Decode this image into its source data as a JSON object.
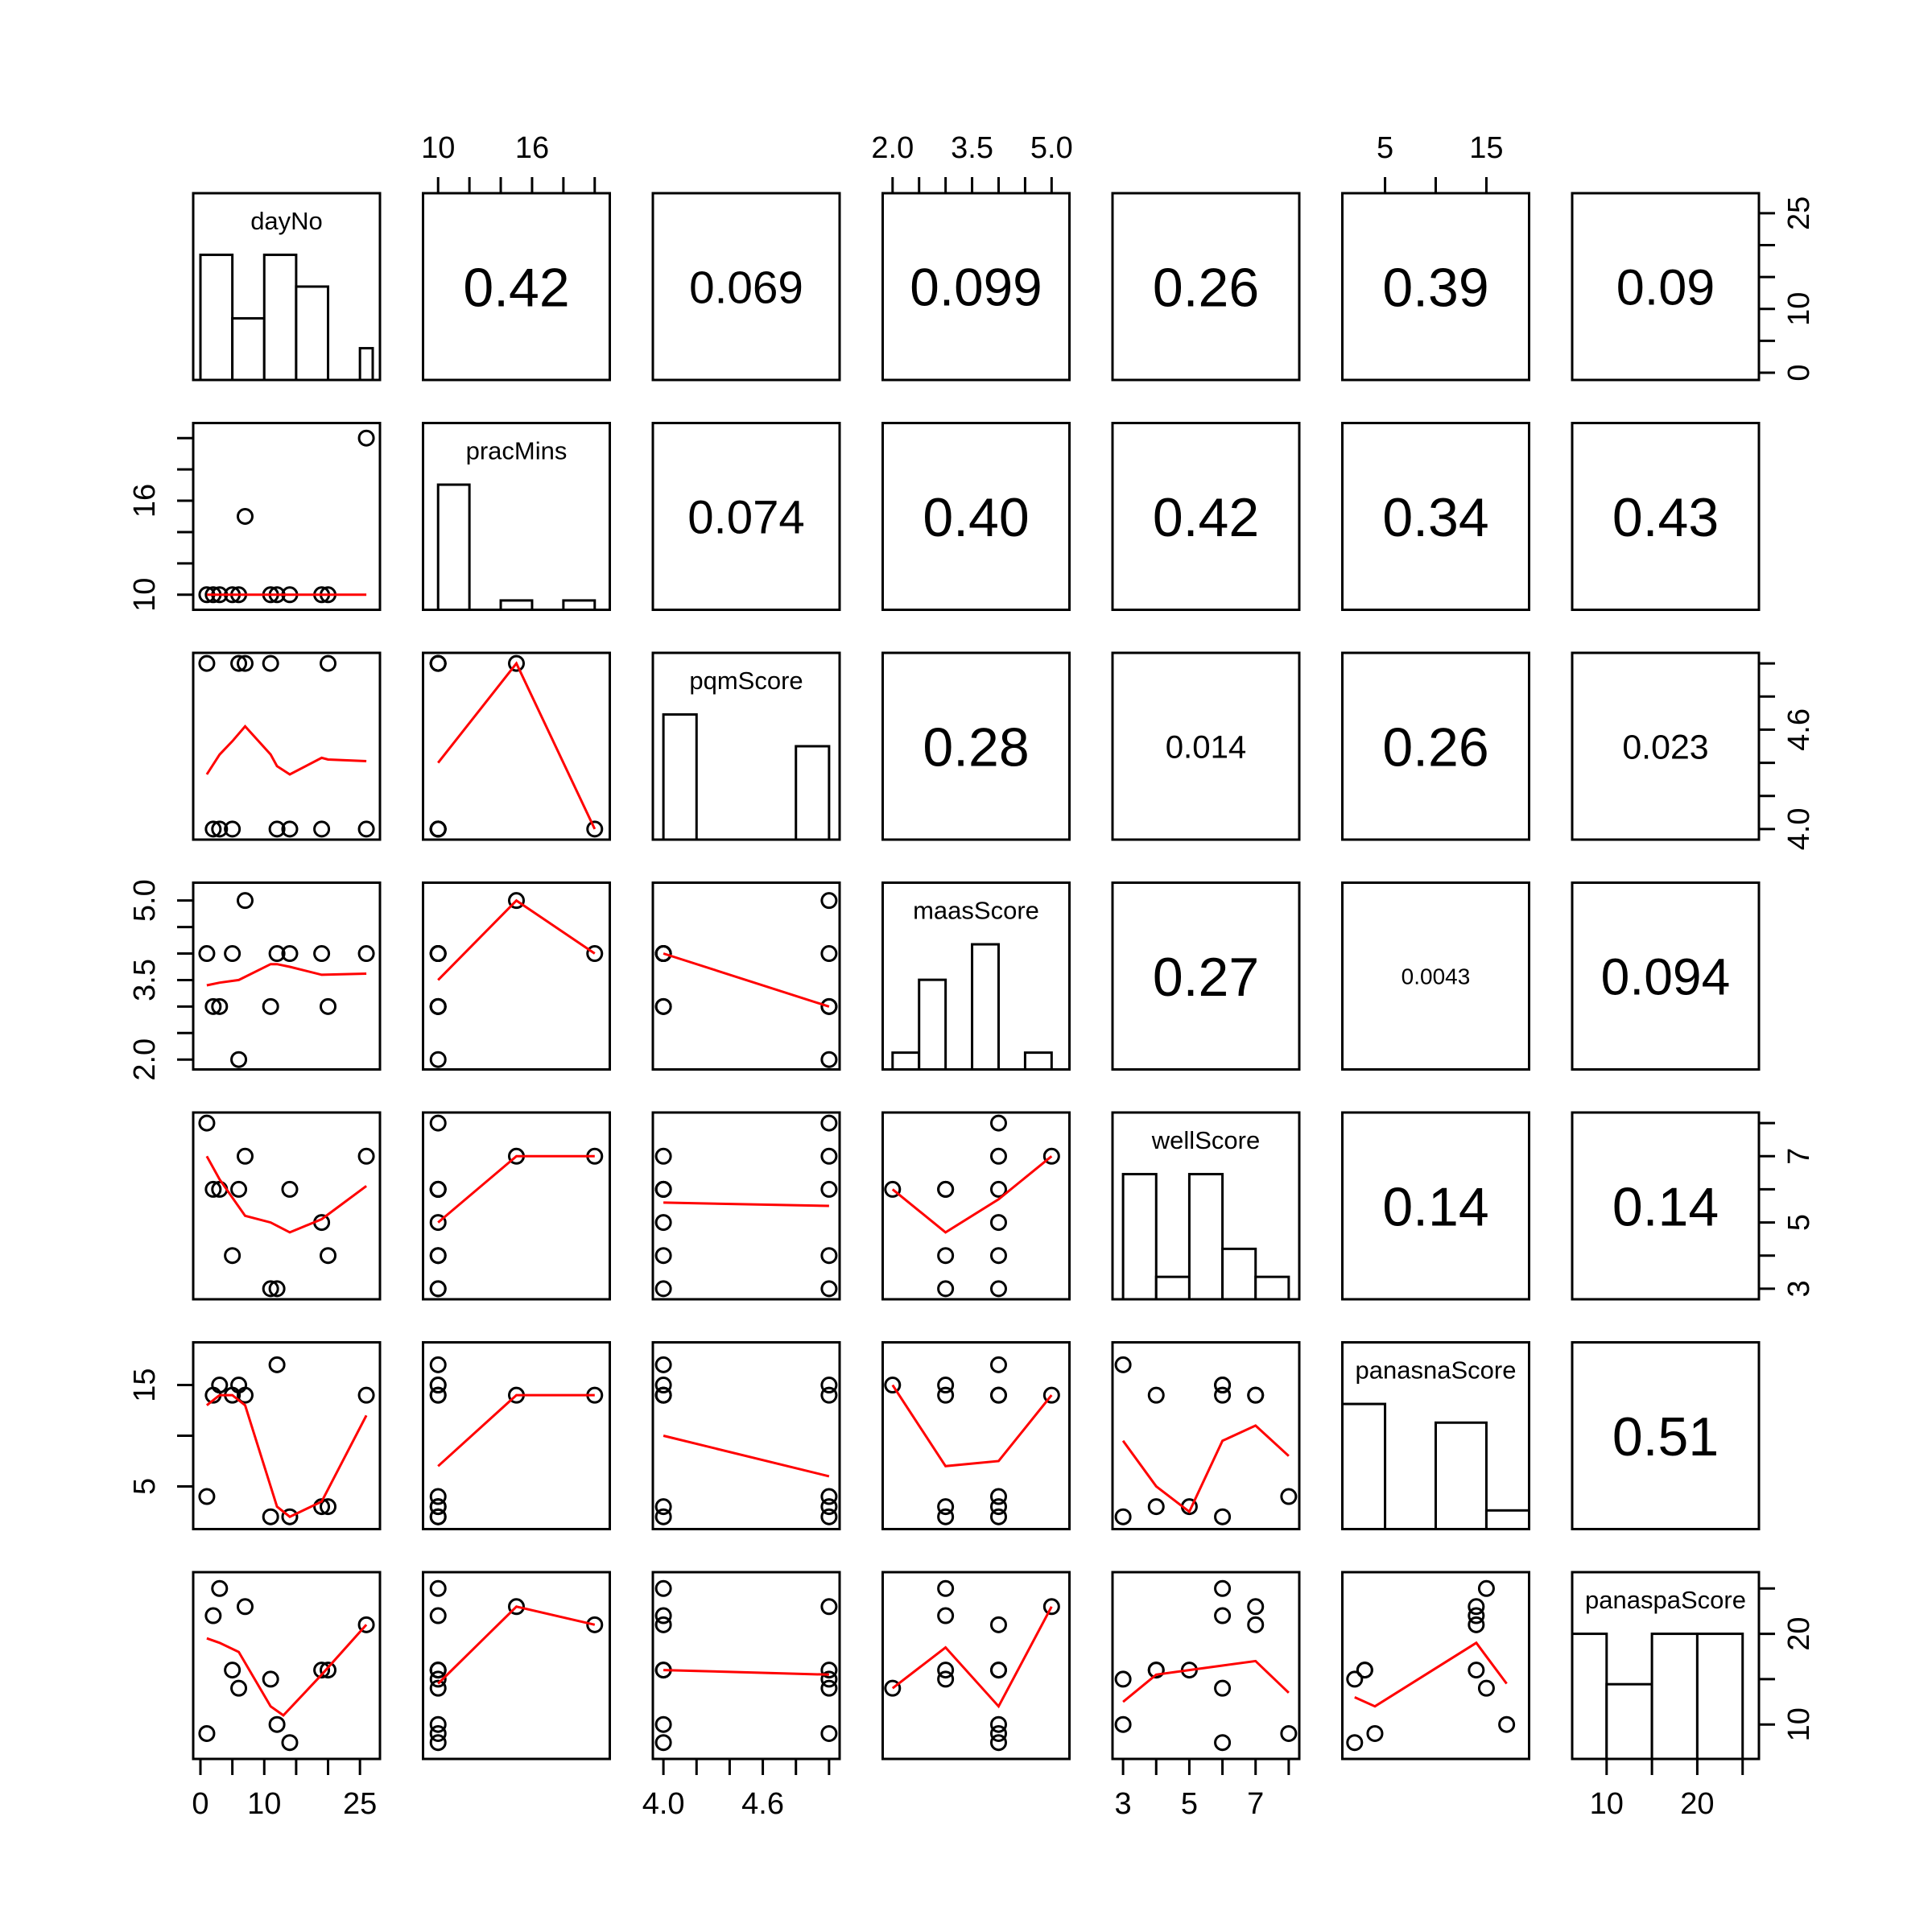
{
  "chart_data": {
    "type": "scatter",
    "variables": [
      {
        "name": "dayNo",
        "label": "dayNo",
        "range": [
          0,
          27
        ],
        "ticks": [
          0,
          5,
          10,
          15,
          20,
          25
        ],
        "tick_labels": [
          {
            "value": 0,
            "text": "0"
          },
          {
            "value": 10,
            "text": "10"
          },
          {
            "value": 25,
            "text": "25"
          }
        ]
      },
      {
        "name": "pracMins",
        "label": "pracMins",
        "range": [
          9.5,
          20.5
        ],
        "ticks": [
          10,
          12,
          14,
          16,
          18,
          20
        ],
        "tick_labels": [
          {
            "value": 10,
            "text": "10"
          },
          {
            "value": 16,
            "text": "16"
          }
        ]
      },
      {
        "name": "pqmScore",
        "label": "pqmScore",
        "range": [
          3.98,
          5.02
        ],
        "ticks": [
          4.0,
          4.2,
          4.4,
          4.6,
          4.8,
          5.0
        ],
        "tick_labels": [
          {
            "value": 4.0,
            "text": "4.0"
          },
          {
            "value": 4.6,
            "text": "4.6"
          }
        ]
      },
      {
        "name": "maasScore",
        "label": "maasScore",
        "range": [
          1.95,
          5.2
        ],
        "ticks": [
          2.0,
          2.5,
          3.0,
          3.5,
          4.0,
          4.5,
          5.0
        ],
        "tick_labels": [
          {
            "value": 2.0,
            "text": "2.0"
          },
          {
            "value": 3.5,
            "text": "3.5"
          },
          {
            "value": 5.0,
            "text": "5.0"
          }
        ]
      },
      {
        "name": "wellScore",
        "label": "wellScore",
        "range": [
          2.9,
          8.1
        ],
        "ticks": [
          3,
          4,
          5,
          6,
          7,
          8
        ],
        "tick_labels": [
          {
            "value": 3,
            "text": "3"
          },
          {
            "value": 5,
            "text": "5"
          },
          {
            "value": 7,
            "text": "7"
          }
        ]
      },
      {
        "name": "panasnaScore",
        "label": "panasnaScore",
        "range": [
          1.5,
          18.5
        ],
        "ticks": [
          5,
          10,
          15
        ],
        "tick_labels": [
          {
            "value": 5,
            "text": "5"
          },
          {
            "value": 15,
            "text": "15"
          }
        ]
      },
      {
        "name": "panaspaScore",
        "label": "panaspaScore",
        "range": [
          7,
          26
        ],
        "ticks": [
          10,
          15,
          20,
          25
        ],
        "tick_labels": [
          {
            "value": 10,
            "text": "10"
          },
          {
            "value": 20,
            "text": "20"
          }
        ]
      }
    ],
    "observations": {
      "dayNo": [
        1,
        2,
        3,
        5,
        6,
        7,
        11,
        12,
        14,
        19,
        20,
        26
      ],
      "pracMins": [
        10,
        10,
        10,
        10,
        10,
        15,
        10,
        10,
        10,
        10,
        10,
        20
      ],
      "pqmScore": [
        5,
        4,
        4,
        4,
        5,
        5,
        5,
        4,
        4,
        4,
        5,
        4
      ],
      "maasScore": [
        4,
        3,
        3,
        4,
        2,
        5,
        3,
        4,
        4,
        4,
        3,
        4
      ],
      "wellScore": [
        8,
        6,
        6,
        4,
        6,
        7,
        3,
        3,
        6,
        5,
        4,
        7
      ],
      "panasnaScore": [
        4,
        14,
        15,
        14,
        15,
        14,
        2,
        17,
        2,
        3,
        3,
        14
      ],
      "panaspaScore": [
        9,
        22,
        25,
        16,
        14,
        23,
        15,
        10,
        8,
        16,
        16,
        21
      ]
    },
    "correlations": [
      {
        "row": 0,
        "col": 1,
        "text": "0.42"
      },
      {
        "row": 0,
        "col": 2,
        "text": "0.069"
      },
      {
        "row": 0,
        "col": 3,
        "text": "0.099"
      },
      {
        "row": 0,
        "col": 4,
        "text": "0.26"
      },
      {
        "row": 0,
        "col": 5,
        "text": "0.39"
      },
      {
        "row": 0,
        "col": 6,
        "text": "0.09"
      },
      {
        "row": 1,
        "col": 2,
        "text": "0.074"
      },
      {
        "row": 1,
        "col": 3,
        "text": "0.40"
      },
      {
        "row": 1,
        "col": 4,
        "text": "0.42"
      },
      {
        "row": 1,
        "col": 5,
        "text": "0.34"
      },
      {
        "row": 1,
        "col": 6,
        "text": "0.43"
      },
      {
        "row": 2,
        "col": 3,
        "text": "0.28"
      },
      {
        "row": 2,
        "col": 4,
        "text": "0.014"
      },
      {
        "row": 2,
        "col": 5,
        "text": "0.26"
      },
      {
        "row": 2,
        "col": 6,
        "text": "0.023"
      },
      {
        "row": 3,
        "col": 4,
        "text": "0.27"
      },
      {
        "row": 3,
        "col": 5,
        "text": "0.0043"
      },
      {
        "row": 3,
        "col": 6,
        "text": "0.094"
      },
      {
        "row": 4,
        "col": 5,
        "text": "0.14"
      },
      {
        "row": 4,
        "col": 6,
        "text": "0.14"
      },
      {
        "row": 5,
        "col": 6,
        "text": "0.51"
      }
    ],
    "histograms": [
      {
        "variable": "dayNo",
        "breaks": [
          0,
          5,
          10,
          15,
          20,
          25,
          27
        ],
        "relative_heights": [
          0.67,
          0.33,
          0.67,
          0.5,
          0.0,
          0.17
        ]
      },
      {
        "variable": "pracMins",
        "breaks": [
          10,
          12,
          14,
          16,
          18,
          20
        ],
        "relative_heights": [
          0.67,
          0.0,
          0.05,
          0.0,
          0.05
        ]
      },
      {
        "variable": "pqmScore",
        "breaks": [
          4.0,
          4.2,
          4.4,
          4.6,
          4.8,
          5.0
        ],
        "relative_heights": [
          0.67,
          0.0,
          0.0,
          0.0,
          0.5
        ]
      },
      {
        "variable": "maasScore",
        "breaks": [
          2.0,
          2.5,
          3.0,
          3.5,
          4.0,
          4.5,
          5.0
        ],
        "relative_heights": [
          0.09,
          0.48,
          0.0,
          0.67,
          0.0,
          0.09
        ]
      },
      {
        "variable": "wellScore",
        "breaks": [
          3,
          4,
          5,
          6,
          7,
          8
        ],
        "relative_heights": [
          0.67,
          0.12,
          0.67,
          0.27,
          0.12
        ]
      },
      {
        "variable": "panasnaScore",
        "breaks": [
          0,
          5,
          10,
          15,
          20
        ],
        "relative_heights": [
          0.67,
          0.0,
          0.57,
          0.1
        ]
      },
      {
        "variable": "panaspaScore",
        "breaks": [
          5,
          10,
          15,
          20,
          25
        ],
        "relative_heights": [
          0.67,
          0.4,
          0.67,
          0.67
        ]
      }
    ],
    "smoothers": [
      {
        "row": 1,
        "col": 0,
        "points": [
          [
            1,
            10
          ],
          [
            26,
            10
          ]
        ]
      },
      {
        "row": 2,
        "col": 0,
        "points": [
          [
            1,
            4.33
          ],
          [
            3,
            4.45
          ],
          [
            5,
            4.53
          ],
          [
            7,
            4.62
          ],
          [
            11,
            4.45
          ],
          [
            12,
            4.38
          ],
          [
            14,
            4.33
          ],
          [
            19,
            4.43
          ],
          [
            20,
            4.42
          ],
          [
            26,
            4.41
          ]
        ]
      },
      {
        "row": 2,
        "col": 1,
        "points": [
          [
            10,
            4.4
          ],
          [
            15,
            5.0
          ],
          [
            20,
            4.0
          ]
        ]
      },
      {
        "row": 3,
        "col": 0,
        "points": [
          [
            1,
            3.4
          ],
          [
            3,
            3.45
          ],
          [
            6,
            3.5
          ],
          [
            11,
            3.8
          ],
          [
            12,
            3.8
          ],
          [
            14,
            3.75
          ],
          [
            19,
            3.6
          ],
          [
            26,
            3.62
          ]
        ]
      },
      {
        "row": 3,
        "col": 1,
        "points": [
          [
            10,
            3.5
          ],
          [
            15,
            5.0
          ],
          [
            20,
            4.0
          ]
        ]
      },
      {
        "row": 3,
        "col": 2,
        "points": [
          [
            4,
            4.0
          ],
          [
            5,
            3.0
          ]
        ]
      },
      {
        "row": 4,
        "col": 0,
        "points": [
          [
            1,
            7.0
          ],
          [
            3,
            6.3
          ],
          [
            7,
            5.2
          ],
          [
            11,
            5.0
          ],
          [
            14,
            4.7
          ],
          [
            19,
            5.1
          ],
          [
            26,
            6.1
          ]
        ]
      },
      {
        "row": 4,
        "col": 1,
        "points": [
          [
            10,
            5.0
          ],
          [
            15,
            7.0
          ],
          [
            20,
            7.0
          ]
        ]
      },
      {
        "row": 4,
        "col": 2,
        "points": [
          [
            4,
            5.6
          ],
          [
            5,
            5.5
          ]
        ]
      },
      {
        "row": 4,
        "col": 3,
        "points": [
          [
            2,
            6.0
          ],
          [
            3,
            4.7
          ],
          [
            4,
            5.7
          ],
          [
            5,
            7.0
          ]
        ]
      },
      {
        "row": 5,
        "col": 0,
        "points": [
          [
            1,
            13.0
          ],
          [
            3,
            14.0
          ],
          [
            5,
            14.0
          ],
          [
            7,
            13.0
          ],
          [
            11,
            5.0
          ],
          [
            12,
            3.0
          ],
          [
            14,
            2.0
          ],
          [
            19,
            3.5
          ],
          [
            26,
            12.0
          ]
        ]
      },
      {
        "row": 5,
        "col": 1,
        "points": [
          [
            10,
            7.0
          ],
          [
            15,
            14.0
          ],
          [
            20,
            14.0
          ]
        ]
      },
      {
        "row": 5,
        "col": 2,
        "points": [
          [
            4,
            10.0
          ],
          [
            5,
            6.0
          ]
        ]
      },
      {
        "row": 5,
        "col": 3,
        "points": [
          [
            2,
            15.0
          ],
          [
            3,
            7.0
          ],
          [
            4,
            7.5
          ],
          [
            5,
            14.0
          ]
        ]
      },
      {
        "row": 5,
        "col": 4,
        "points": [
          [
            3,
            9.5
          ],
          [
            4,
            5.0
          ],
          [
            5,
            2.5
          ],
          [
            6,
            9.5
          ],
          [
            7,
            11.0
          ],
          [
            8,
            8.0
          ]
        ]
      },
      {
        "row": 6,
        "col": 0,
        "points": [
          [
            1,
            19.5
          ],
          [
            3,
            19.0
          ],
          [
            6,
            18.0
          ],
          [
            11,
            12.0
          ],
          [
            13,
            11.0
          ],
          [
            19,
            15.5
          ],
          [
            26,
            21.0
          ]
        ]
      },
      {
        "row": 6,
        "col": 1,
        "points": [
          [
            10,
            14.5
          ],
          [
            15,
            23.0
          ],
          [
            20,
            21.0
          ]
        ]
      },
      {
        "row": 6,
        "col": 2,
        "points": [
          [
            4,
            16.0
          ],
          [
            5,
            15.5
          ]
        ]
      },
      {
        "row": 6,
        "col": 3,
        "points": [
          [
            2,
            14.0
          ],
          [
            3,
            18.5
          ],
          [
            4,
            12.0
          ],
          [
            5,
            23.0
          ]
        ]
      },
      {
        "row": 6,
        "col": 4,
        "points": [
          [
            3,
            12.5
          ],
          [
            4,
            15.5
          ],
          [
            5,
            16.0
          ],
          [
            6,
            16.5
          ],
          [
            7,
            17.0
          ],
          [
            8,
            13.5
          ]
        ]
      },
      {
        "row": 6,
        "col": 5,
        "points": [
          [
            2,
            13.0
          ],
          [
            4,
            12.0
          ],
          [
            14,
            19.0
          ],
          [
            15,
            17.5
          ],
          [
            17,
            14.5
          ]
        ]
      }
    ],
    "colors": {
      "points": "#000000",
      "smoother": "#ff0000",
      "bars": "#ffffff"
    }
  }
}
